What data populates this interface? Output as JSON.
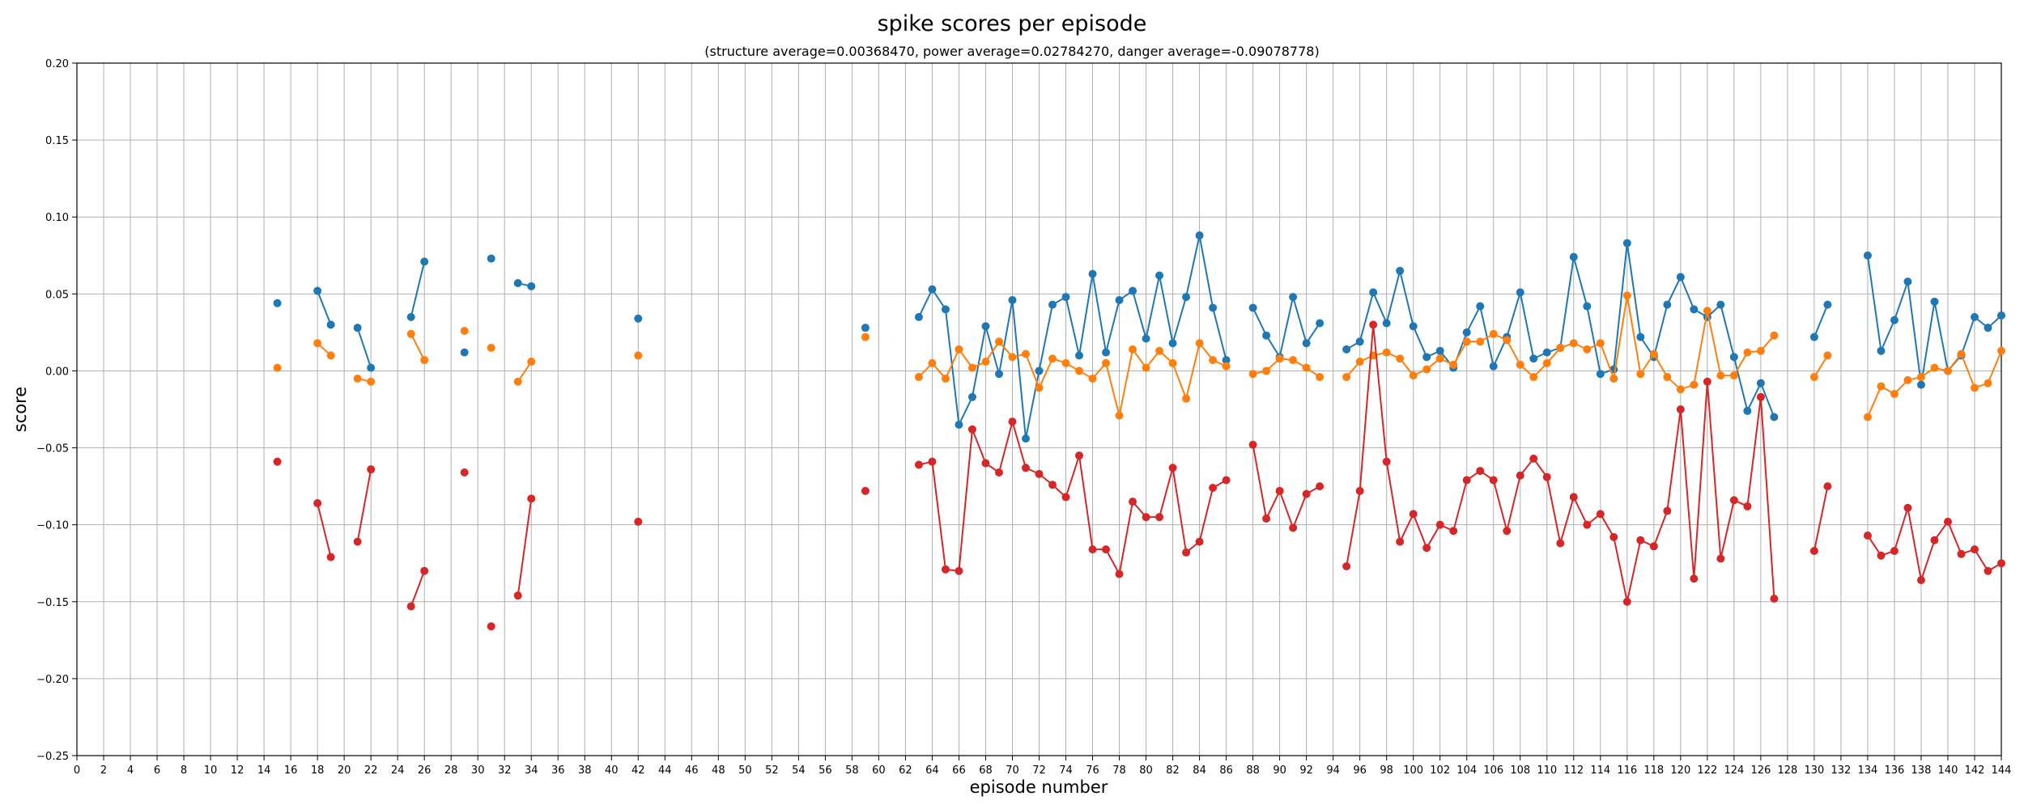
{
  "chart_data": {
    "type": "line",
    "title": "spike scores per episode",
    "subtitle": "(structure average=0.00368470, power average=0.02784270, danger average=-0.09078778)",
    "xlabel": "episode number",
    "ylabel": "score",
    "xlim": [
      0,
      144
    ],
    "ylim": [
      -0.25,
      0.2
    ],
    "xticks": [
      0,
      2,
      4,
      6,
      8,
      10,
      12,
      14,
      16,
      18,
      20,
      22,
      24,
      26,
      28,
      30,
      32,
      34,
      36,
      38,
      40,
      42,
      44,
      46,
      48,
      50,
      52,
      54,
      56,
      58,
      60,
      62,
      64,
      66,
      68,
      70,
      72,
      74,
      76,
      78,
      80,
      82,
      84,
      86,
      88,
      90,
      92,
      94,
      96,
      98,
      100,
      102,
      104,
      106,
      108,
      110,
      112,
      114,
      116,
      118,
      120,
      122,
      124,
      126,
      128,
      130,
      132,
      134,
      136,
      138,
      140,
      142,
      144
    ],
    "yticks": [
      -0.25,
      -0.2,
      -0.15,
      -0.1,
      -0.05,
      0.0,
      0.05,
      0.1,
      0.15,
      0.2
    ],
    "ytick_labels": [
      "−0.25",
      "−0.20",
      "−0.15",
      "−0.10",
      "−0.05",
      "0.00",
      "0.05",
      "0.10",
      "0.15",
      "0.20"
    ],
    "grid": true,
    "legend": "none",
    "series": [
      {
        "color": "#1f77b4",
        "points": [
          [
            15,
            0.044
          ],
          [
            18,
            0.052
          ],
          [
            19,
            0.03
          ],
          [
            21,
            0.028
          ],
          [
            22,
            0.002
          ],
          [
            25,
            0.035
          ],
          [
            26,
            0.071
          ],
          [
            29,
            0.012
          ],
          [
            31,
            0.073
          ],
          [
            33,
            0.057
          ],
          [
            34,
            0.055
          ],
          [
            42,
            0.034
          ],
          [
            59,
            0.028
          ],
          [
            63,
            0.035
          ],
          [
            64,
            0.053
          ],
          [
            65,
            0.04
          ],
          [
            66,
            -0.035
          ],
          [
            67,
            -0.017
          ],
          [
            68,
            0.029
          ],
          [
            69,
            -0.002
          ],
          [
            70,
            0.046
          ],
          [
            71,
            -0.044
          ],
          [
            72,
            0.0
          ],
          [
            73,
            0.043
          ],
          [
            74,
            0.048
          ],
          [
            75,
            0.01
          ],
          [
            76,
            0.063
          ],
          [
            77,
            0.012
          ],
          [
            78,
            0.046
          ],
          [
            79,
            0.052
          ],
          [
            80,
            0.021
          ],
          [
            81,
            0.062
          ],
          [
            82,
            0.018
          ],
          [
            83,
            0.048
          ],
          [
            84,
            0.088
          ],
          [
            85,
            0.041
          ],
          [
            86,
            0.007
          ],
          [
            88,
            0.041
          ],
          [
            89,
            0.023
          ],
          [
            90,
            0.009
          ],
          [
            91,
            0.048
          ],
          [
            92,
            0.018
          ],
          [
            93,
            0.031
          ],
          [
            95,
            0.014
          ],
          [
            96,
            0.019
          ],
          [
            97,
            0.051
          ],
          [
            98,
            0.031
          ],
          [
            99,
            0.065
          ],
          [
            100,
            0.029
          ],
          [
            101,
            0.009
          ],
          [
            102,
            0.013
          ],
          [
            103,
            0.002
          ],
          [
            104,
            0.025
          ],
          [
            105,
            0.042
          ],
          [
            106,
            0.003
          ],
          [
            107,
            0.022
          ],
          [
            108,
            0.051
          ],
          [
            109,
            0.008
          ],
          [
            110,
            0.012
          ],
          [
            111,
            0.015
          ],
          [
            112,
            0.074
          ],
          [
            113,
            0.042
          ],
          [
            114,
            -0.002
          ],
          [
            115,
            0.001
          ],
          [
            116,
            0.083
          ],
          [
            117,
            0.022
          ],
          [
            118,
            0.009
          ],
          [
            119,
            0.043
          ],
          [
            120,
            0.061
          ],
          [
            121,
            0.04
          ],
          [
            122,
            0.035
          ],
          [
            123,
            0.043
          ],
          [
            124,
            0.009
          ],
          [
            125,
            -0.026
          ],
          [
            126,
            -0.008
          ],
          [
            127,
            -0.03
          ],
          [
            130,
            0.022
          ],
          [
            131,
            0.043
          ],
          [
            134,
            0.075
          ],
          [
            135,
            0.013
          ],
          [
            136,
            0.033
          ],
          [
            137,
            0.058
          ],
          [
            138,
            -0.009
          ],
          [
            139,
            0.045
          ],
          [
            140,
            0.0
          ],
          [
            141,
            0.01
          ],
          [
            142,
            0.035
          ],
          [
            143,
            0.028
          ],
          [
            144,
            0.036
          ]
        ]
      },
      {
        "color": "#ff7f0e",
        "points": [
          [
            15,
            0.002
          ],
          [
            18,
            0.018
          ],
          [
            19,
            0.01
          ],
          [
            21,
            -0.005
          ],
          [
            22,
            -0.007
          ],
          [
            25,
            0.024
          ],
          [
            26,
            0.007
          ],
          [
            29,
            0.026
          ],
          [
            31,
            0.015
          ],
          [
            33,
            -0.007
          ],
          [
            34,
            0.006
          ],
          [
            42,
            0.01
          ],
          [
            59,
            0.022
          ],
          [
            63,
            -0.004
          ],
          [
            64,
            0.005
          ],
          [
            65,
            -0.005
          ],
          [
            66,
            0.014
          ],
          [
            67,
            0.002
          ],
          [
            68,
            0.006
          ],
          [
            69,
            0.019
          ],
          [
            70,
            0.009
          ],
          [
            71,
            0.011
          ],
          [
            72,
            -0.011
          ],
          [
            73,
            0.008
          ],
          [
            74,
            0.005
          ],
          [
            75,
            0.0
          ],
          [
            76,
            -0.005
          ],
          [
            77,
            0.005
          ],
          [
            78,
            -0.029
          ],
          [
            79,
            0.014
          ],
          [
            80,
            0.002
          ],
          [
            81,
            0.013
          ],
          [
            82,
            0.005
          ],
          [
            83,
            -0.018
          ],
          [
            84,
            0.018
          ],
          [
            85,
            0.007
          ],
          [
            86,
            0.003
          ],
          [
            88,
            -0.002
          ],
          [
            89,
            0.0
          ],
          [
            90,
            0.008
          ],
          [
            91,
            0.007
          ],
          [
            92,
            0.002
          ],
          [
            93,
            -0.004
          ],
          [
            95,
            -0.004
          ],
          [
            96,
            0.006
          ],
          [
            97,
            0.01
          ],
          [
            98,
            0.012
          ],
          [
            99,
            0.008
          ],
          [
            100,
            -0.003
          ],
          [
            101,
            0.001
          ],
          [
            102,
            0.008
          ],
          [
            103,
            0.004
          ],
          [
            104,
            0.019
          ],
          [
            105,
            0.019
          ],
          [
            106,
            0.024
          ],
          [
            107,
            0.02
          ],
          [
            108,
            0.004
          ],
          [
            109,
            -0.004
          ],
          [
            110,
            0.005
          ],
          [
            111,
            0.015
          ],
          [
            112,
            0.018
          ],
          [
            113,
            0.014
          ],
          [
            114,
            0.018
          ],
          [
            115,
            -0.005
          ],
          [
            116,
            0.049
          ],
          [
            117,
            -0.002
          ],
          [
            118,
            0.011
          ],
          [
            119,
            -0.004
          ],
          [
            120,
            -0.012
          ],
          [
            121,
            -0.009
          ],
          [
            122,
            0.039
          ],
          [
            123,
            -0.003
          ],
          [
            124,
            -0.003
          ],
          [
            125,
            0.012
          ],
          [
            126,
            0.013
          ],
          [
            127,
            0.023
          ],
          [
            130,
            -0.004
          ],
          [
            131,
            0.01
          ],
          [
            134,
            -0.03
          ],
          [
            135,
            -0.01
          ],
          [
            136,
            -0.015
          ],
          [
            137,
            -0.006
          ],
          [
            138,
            -0.004
          ],
          [
            139,
            0.002
          ],
          [
            140,
            0.0
          ],
          [
            141,
            0.011
          ],
          [
            142,
            -0.011
          ],
          [
            143,
            -0.008
          ],
          [
            144,
            0.013
          ]
        ]
      },
      {
        "color": "#d62728",
        "points": [
          [
            15,
            -0.059
          ],
          [
            18,
            -0.086
          ],
          [
            19,
            -0.121
          ],
          [
            21,
            -0.111
          ],
          [
            22,
            -0.064
          ],
          [
            25,
            -0.153
          ],
          [
            26,
            -0.13
          ],
          [
            29,
            -0.066
          ],
          [
            31,
            -0.166
          ],
          [
            33,
            -0.146
          ],
          [
            34,
            -0.083
          ],
          [
            42,
            -0.098
          ],
          [
            59,
            -0.078
          ],
          [
            63,
            -0.061
          ],
          [
            64,
            -0.059
          ],
          [
            65,
            -0.129
          ],
          [
            66,
            -0.13
          ],
          [
            67,
            -0.038
          ],
          [
            68,
            -0.06
          ],
          [
            69,
            -0.066
          ],
          [
            70,
            -0.033
          ],
          [
            71,
            -0.063
          ],
          [
            72,
            -0.067
          ],
          [
            73,
            -0.074
          ],
          [
            74,
            -0.082
          ],
          [
            75,
            -0.055
          ],
          [
            76,
            -0.116
          ],
          [
            77,
            -0.116
          ],
          [
            78,
            -0.132
          ],
          [
            79,
            -0.085
          ],
          [
            80,
            -0.095
          ],
          [
            81,
            -0.095
          ],
          [
            82,
            -0.063
          ],
          [
            83,
            -0.118
          ],
          [
            84,
            -0.111
          ],
          [
            85,
            -0.076
          ],
          [
            86,
            -0.071
          ],
          [
            88,
            -0.048
          ],
          [
            89,
            -0.096
          ],
          [
            90,
            -0.078
          ],
          [
            91,
            -0.102
          ],
          [
            92,
            -0.08
          ],
          [
            93,
            -0.075
          ],
          [
            95,
            -0.127
          ],
          [
            96,
            -0.078
          ],
          [
            97,
            0.03
          ],
          [
            98,
            -0.059
          ],
          [
            99,
            -0.111
          ],
          [
            100,
            -0.093
          ],
          [
            101,
            -0.115
          ],
          [
            102,
            -0.1
          ],
          [
            103,
            -0.104
          ],
          [
            104,
            -0.071
          ],
          [
            105,
            -0.065
          ],
          [
            106,
            -0.071
          ],
          [
            107,
            -0.104
          ],
          [
            108,
            -0.068
          ],
          [
            109,
            -0.057
          ],
          [
            110,
            -0.069
          ],
          [
            111,
            -0.112
          ],
          [
            112,
            -0.082
          ],
          [
            113,
            -0.1
          ],
          [
            114,
            -0.093
          ],
          [
            115,
            -0.108
          ],
          [
            116,
            -0.15
          ],
          [
            117,
            -0.11
          ],
          [
            118,
            -0.114
          ],
          [
            119,
            -0.091
          ],
          [
            120,
            -0.025
          ],
          [
            121,
            -0.135
          ],
          [
            122,
            -0.007
          ],
          [
            123,
            -0.122
          ],
          [
            124,
            -0.084
          ],
          [
            125,
            -0.088
          ],
          [
            126,
            -0.017
          ],
          [
            127,
            -0.148
          ],
          [
            130,
            -0.117
          ],
          [
            131,
            -0.075
          ],
          [
            134,
            -0.107
          ],
          [
            135,
            -0.12
          ],
          [
            136,
            -0.117
          ],
          [
            137,
            -0.089
          ],
          [
            138,
            -0.136
          ],
          [
            139,
            -0.11
          ],
          [
            140,
            -0.098
          ],
          [
            141,
            -0.119
          ],
          [
            142,
            -0.116
          ],
          [
            143,
            -0.13
          ],
          [
            144,
            -0.125
          ]
        ]
      }
    ]
  }
}
